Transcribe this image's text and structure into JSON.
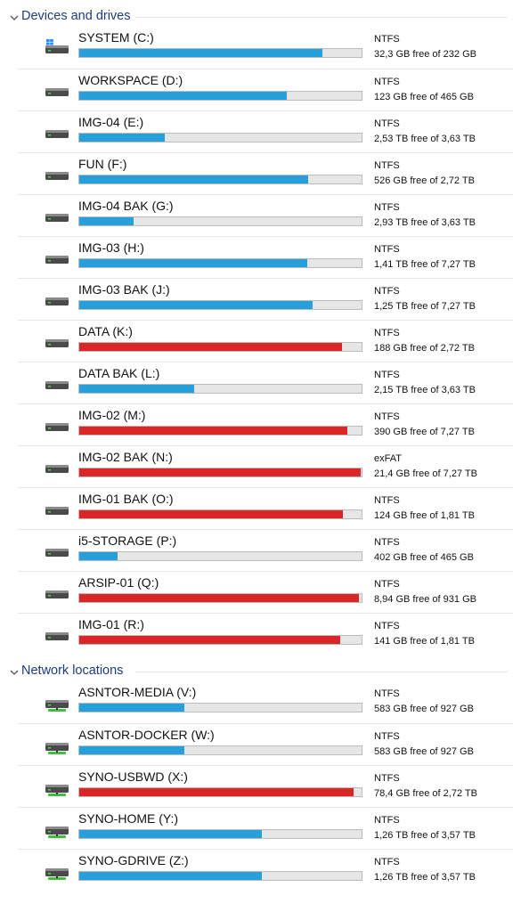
{
  "colors": {
    "normal": "#26a0da",
    "full": "#da2626",
    "network_stripe": "#3fbf3f"
  },
  "sections": [
    {
      "title": "Devices and drives",
      "type": "local",
      "drives": [
        {
          "name": "SYSTEM (C:)",
          "fs": "NTFS",
          "free": "32,3 GB free of 232 GB",
          "used_fraction": 0.861,
          "status": "normal",
          "icon": "windows-drive-icon"
        },
        {
          "name": "WORKSPACE (D:)",
          "fs": "NTFS",
          "free": "123 GB free of 465 GB",
          "used_fraction": 0.735,
          "status": "normal",
          "icon": "hard-drive-icon"
        },
        {
          "name": "IMG-04 (E:)",
          "fs": "NTFS",
          "free": "2,53 TB free of 3,63 TB",
          "used_fraction": 0.303,
          "status": "normal",
          "icon": "hard-drive-icon"
        },
        {
          "name": "FUN (F:)",
          "fs": "NTFS",
          "free": "526 GB free of 2,72 TB",
          "used_fraction": 0.811,
          "status": "normal",
          "icon": "hard-drive-icon"
        },
        {
          "name": "IMG-04 BAK (G:)",
          "fs": "NTFS",
          "free": "2,93 TB free of 3,63 TB",
          "used_fraction": 0.193,
          "status": "normal",
          "icon": "hard-drive-icon"
        },
        {
          "name": "IMG-03 (H:)",
          "fs": "NTFS",
          "free": "1,41 TB free of 7,27 TB",
          "used_fraction": 0.806,
          "status": "normal",
          "icon": "hard-drive-icon"
        },
        {
          "name": "IMG-03 BAK (J:)",
          "fs": "NTFS",
          "free": "1,25 TB free of 7,27 TB",
          "used_fraction": 0.828,
          "status": "normal",
          "icon": "hard-drive-icon"
        },
        {
          "name": "DATA (K:)",
          "fs": "NTFS",
          "free": "188 GB free of 2,72 TB",
          "used_fraction": 0.932,
          "status": "full",
          "icon": "hard-drive-icon"
        },
        {
          "name": "DATA BAK (L:)",
          "fs": "NTFS",
          "free": "2,15 TB free of 3,63 TB",
          "used_fraction": 0.408,
          "status": "normal",
          "icon": "hard-drive-icon"
        },
        {
          "name": "IMG-02 (M:)",
          "fs": "NTFS",
          "free": "390 GB free of 7,27 TB",
          "used_fraction": 0.948,
          "status": "full",
          "icon": "hard-drive-icon"
        },
        {
          "name": "IMG-02 BAK (N:)",
          "fs": "exFAT",
          "free": "21,4 GB free of 7,27 TB",
          "used_fraction": 0.997,
          "status": "full",
          "icon": "hard-drive-icon"
        },
        {
          "name": "IMG-01 BAK (O:)",
          "fs": "NTFS",
          "free": "124 GB free of 1,81 TB",
          "used_fraction": 0.933,
          "status": "full",
          "icon": "hard-drive-icon"
        },
        {
          "name": "i5-STORAGE (P:)",
          "fs": "NTFS",
          "free": "402 GB free of 465 GB",
          "used_fraction": 0.135,
          "status": "normal",
          "icon": "hard-drive-icon"
        },
        {
          "name": "ARSIP-01 (Q:)",
          "fs": "NTFS",
          "free": "8,94 GB free of 931 GB",
          "used_fraction": 0.99,
          "status": "full",
          "icon": "hard-drive-icon"
        },
        {
          "name": "IMG-01 (R:)",
          "fs": "NTFS",
          "free": "141 GB free of 1,81 TB",
          "used_fraction": 0.924,
          "status": "full",
          "icon": "hard-drive-icon"
        }
      ]
    },
    {
      "title": "Network locations",
      "type": "network",
      "drives": [
        {
          "name": "ASNTOR-MEDIA (V:)",
          "fs": "NTFS",
          "free": "583 GB free of 927 GB",
          "used_fraction": 0.371,
          "status": "normal",
          "icon": "network-drive-icon"
        },
        {
          "name": "ASNTOR-DOCKER (W:)",
          "fs": "NTFS",
          "free": "583 GB free of 927 GB",
          "used_fraction": 0.371,
          "status": "normal",
          "icon": "network-drive-icon"
        },
        {
          "name": "SYNO-USBWD (X:)",
          "fs": "NTFS",
          "free": "78,4 GB free of 2,72 TB",
          "used_fraction": 0.972,
          "status": "full",
          "icon": "network-drive-icon"
        },
        {
          "name": "SYNO-HOME (Y:)",
          "fs": "NTFS",
          "free": "1,26 TB free of 3,57 TB",
          "used_fraction": 0.647,
          "status": "normal",
          "icon": "network-drive-icon"
        },
        {
          "name": "SYNO-GDRIVE (Z:)",
          "fs": "NTFS",
          "free": "1,26 TB free of 3,57 TB",
          "used_fraction": 0.647,
          "status": "normal",
          "icon": "network-drive-icon"
        }
      ]
    }
  ]
}
